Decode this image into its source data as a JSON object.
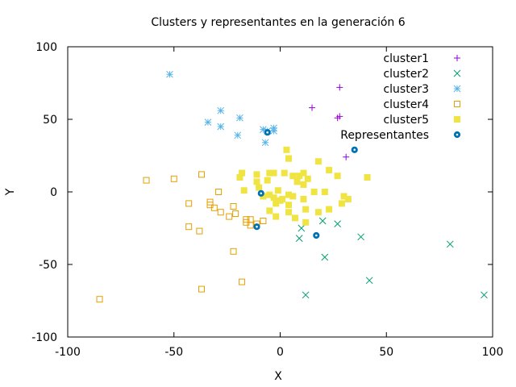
{
  "chart_data": {
    "type": "scatter",
    "title": "Clusters y representantes en la generación 6",
    "xlabel": "X",
    "ylabel": "Y",
    "xlim": [
      -100,
      100
    ],
    "ylim": [
      -100,
      100
    ],
    "xticks": [
      -100,
      -50,
      0,
      50,
      100
    ],
    "yticks": [
      -100,
      -50,
      0,
      50,
      100
    ],
    "grid": false,
    "legend_position": "top-right",
    "series": [
      {
        "name": "cluster1",
        "marker": "plus",
        "color": "#9400d3",
        "points": [
          [
            28,
            72
          ],
          [
            15,
            58
          ],
          [
            28,
            52
          ],
          [
            27,
            51
          ],
          [
            31,
            24
          ]
        ]
      },
      {
        "name": "cluster2",
        "marker": "cross",
        "color": "#009e73",
        "points": [
          [
            10,
            -25
          ],
          [
            9,
            -32
          ],
          [
            20,
            -20
          ],
          [
            27,
            -22
          ],
          [
            38,
            -31
          ],
          [
            21,
            -45
          ],
          [
            12,
            -71
          ],
          [
            42,
            -61
          ],
          [
            80,
            -36
          ],
          [
            96,
            -71
          ]
        ]
      },
      {
        "name": "cluster3",
        "marker": "asterisk",
        "color": "#56b4e9",
        "points": [
          [
            -52,
            81
          ],
          [
            -28,
            56
          ],
          [
            -34,
            48
          ],
          [
            -28,
            45
          ],
          [
            -19,
            51
          ],
          [
            -20,
            39
          ],
          [
            -8,
            43
          ],
          [
            -6,
            42
          ],
          [
            -3,
            44
          ],
          [
            -3,
            42
          ],
          [
            -7,
            34
          ]
        ]
      },
      {
        "name": "cluster4",
        "marker": "open-square",
        "color": "#e69f00",
        "points": [
          [
            -63,
            8
          ],
          [
            -50,
            9
          ],
          [
            -37,
            12
          ],
          [
            -43,
            -8
          ],
          [
            -33,
            -7
          ],
          [
            -33,
            -9
          ],
          [
            -31,
            -11
          ],
          [
            -29,
            0
          ],
          [
            -28,
            -14
          ],
          [
            -24,
            -17
          ],
          [
            -22,
            -10
          ],
          [
            -21,
            -15
          ],
          [
            -16,
            -19
          ],
          [
            -16,
            -21
          ],
          [
            -14,
            -19
          ],
          [
            -14,
            -23
          ],
          [
            -11,
            -22
          ],
          [
            -8,
            -20
          ],
          [
            -43,
            -24
          ],
          [
            -38,
            -27
          ],
          [
            -22,
            -41
          ],
          [
            -18,
            -62
          ],
          [
            -37,
            -67
          ],
          [
            -85,
            -74
          ]
        ]
      },
      {
        "name": "cluster5",
        "marker": "filled-square",
        "color": "#f0e442",
        "points": [
          [
            -19,
            10
          ],
          [
            -18,
            13
          ],
          [
            -17,
            1
          ],
          [
            -11,
            12
          ],
          [
            -11,
            7
          ],
          [
            -10,
            3
          ],
          [
            -8,
            -3
          ],
          [
            -6,
            8
          ],
          [
            -5,
            13
          ],
          [
            -5,
            -2
          ],
          [
            -5,
            -13
          ],
          [
            -3,
            -4
          ],
          [
            -3,
            13
          ],
          [
            -2,
            -8
          ],
          [
            -2,
            -17
          ],
          [
            -1,
            1
          ],
          [
            0,
            -6
          ],
          [
            1,
            -5
          ],
          [
            2,
            13
          ],
          [
            3,
            29
          ],
          [
            4,
            23
          ],
          [
            4,
            23
          ],
          [
            4,
            -14
          ],
          [
            4,
            -9
          ],
          [
            4,
            -2
          ],
          [
            6,
            11
          ],
          [
            6,
            -3
          ],
          [
            7,
            -18
          ],
          [
            8,
            7
          ],
          [
            9,
            11
          ],
          [
            11,
            13
          ],
          [
            11,
            5
          ],
          [
            11,
            -5
          ],
          [
            12,
            -12
          ],
          [
            12,
            -21
          ],
          [
            13,
            9
          ],
          [
            16,
            0
          ],
          [
            18,
            21
          ],
          [
            18,
            -14
          ],
          [
            21,
            0
          ],
          [
            23,
            15
          ],
          [
            23,
            -12
          ],
          [
            27,
            11
          ],
          [
            29,
            -8
          ],
          [
            30,
            -3
          ],
          [
            32,
            -5
          ],
          [
            41,
            10
          ]
        ]
      },
      {
        "name": "Representantes",
        "marker": "dot",
        "color": "#0072b2",
        "points": [
          [
            -6,
            41
          ],
          [
            35,
            29
          ],
          [
            -9,
            -1
          ],
          [
            -11,
            -24
          ],
          [
            17,
            -30
          ]
        ]
      }
    ]
  }
}
